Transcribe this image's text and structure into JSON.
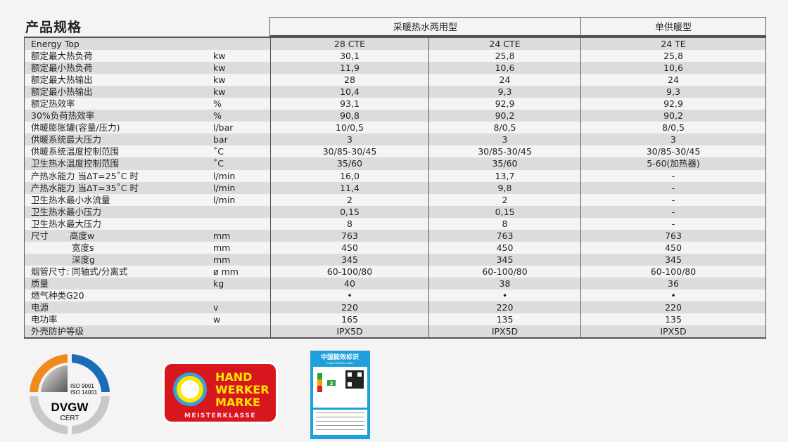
{
  "title": "产品规格",
  "header": {
    "group1": "采暖热水两用型",
    "group2": "单供暖型"
  },
  "rows": [
    {
      "label": "Energy Top",
      "sub": "",
      "unit": "",
      "values": [
        "28 CTE",
        "24 CTE",
        "24 TE"
      ]
    },
    {
      "label": "额定最大热负荷",
      "sub": "",
      "unit": "kw",
      "values": [
        "30,1",
        "25,8",
        "25,8"
      ]
    },
    {
      "label": "额定最小热负荷",
      "sub": "",
      "unit": "kw",
      "values": [
        "11,9",
        "10,6",
        "10,6"
      ]
    },
    {
      "label": "额定最大热输出",
      "sub": "",
      "unit": "kw",
      "values": [
        "28",
        "24",
        "24"
      ]
    },
    {
      "label": "额定最小热输出",
      "sub": "",
      "unit": "kw",
      "values": [
        "10,4",
        "9,3",
        "9,3"
      ]
    },
    {
      "label": "额定热效率",
      "sub": "",
      "unit": "%",
      "values": [
        "93,1",
        "92,9",
        "92,9"
      ]
    },
    {
      "label": "30%负荷热效率",
      "sub": "",
      "unit": "%",
      "values": [
        "90,8",
        "90,2",
        "90,2"
      ]
    },
    {
      "label": "供暖膨胀罐(容量/压力)",
      "sub": "",
      "unit": "l/bar",
      "values": [
        "10/0,5",
        "8/0,5",
        "8/0,5"
      ]
    },
    {
      "label": "供暖系统最大压力",
      "sub": "",
      "unit": "bar",
      "values": [
        "3",
        "3",
        "3"
      ]
    },
    {
      "label": "供暖系统温度控制范围",
      "sub": "",
      "unit": "˚C",
      "values": [
        "30/85-30/45",
        "30/85-30/45",
        "30/85-30/45"
      ]
    },
    {
      "label": "卫生热水温度控制范围",
      "sub": "",
      "unit": "˚C",
      "values": [
        "35/60",
        "35/60",
        "5-60(加热器)"
      ]
    },
    {
      "label": "产热水能力 当ΔT=25˚C 时",
      "sub": "",
      "unit": "l/min",
      "values": [
        "16,0",
        "13,7",
        "-"
      ]
    },
    {
      "label": "产热水能力 当ΔT=35˚C 时",
      "sub": "",
      "unit": "l/min",
      "values": [
        "11,4",
        "9,8",
        "-"
      ]
    },
    {
      "label": "卫生热水最小水流量",
      "sub": "",
      "unit": "l/min",
      "values": [
        "2",
        "2",
        "-"
      ]
    },
    {
      "label": "卫生热水最小压力",
      "sub": "",
      "unit": "",
      "values": [
        "0,15",
        "0,15",
        "-"
      ]
    },
    {
      "label": "卫生热水最大压力",
      "sub": "",
      "unit": "",
      "values": [
        "8",
        "8",
        "-"
      ]
    },
    {
      "label": "尺寸",
      "sub": "高度w",
      "unit": "mm",
      "values": [
        "763",
        "763",
        "763"
      ]
    },
    {
      "label": "",
      "sub": "宽度s",
      "unit": "mm",
      "values": [
        "450",
        "450",
        "450"
      ]
    },
    {
      "label": "",
      "sub": "深度g",
      "unit": "mm",
      "values": [
        "345",
        "345",
        "345"
      ]
    },
    {
      "label": "烟管尺寸: 同轴式/分离式",
      "sub": "",
      "unit": "ø mm",
      "values": [
        "60-100/80",
        "60-100/80",
        "60-100/80"
      ]
    },
    {
      "label": "质量",
      "sub": "",
      "unit": "kg",
      "values": [
        "40",
        "38",
        "36"
      ]
    },
    {
      "label": "燃气种类G20",
      "sub": "",
      "unit": "",
      "values": [
        "•",
        "•",
        "•"
      ]
    },
    {
      "label": "电源",
      "sub": "",
      "unit": "v",
      "values": [
        "220",
        "220",
        "220"
      ]
    },
    {
      "label": "电功率",
      "sub": "",
      "unit": "w",
      "values": [
        "165",
        "135",
        "135"
      ]
    },
    {
      "label": "外壳防护等级",
      "sub": "",
      "unit": "",
      "values": [
        "IPX5D",
        "IPX5D",
        "IPX5D"
      ]
    }
  ],
  "logos": {
    "dvgw": {
      "line1": "ISO 9001",
      "line2": "ISO 14001",
      "name": "DVGW",
      "sub": "CERT",
      "colors": {
        "orange": "#f08a1c",
        "blue": "#1a6db5",
        "gray": "#c8c8c8"
      }
    },
    "handwerker": {
      "l1": "HAND",
      "l2": "WERKER",
      "l3": "MARKE",
      "l4": "MEISTERKLASSE",
      "colors": {
        "red": "#d8161e",
        "yellow": "#ffe600"
      }
    },
    "energy_label": {
      "title": "中国能效标识",
      "subtitle": "CHINA ENERGY LABEL",
      "grade": "2",
      "color": "#1ea0db"
    }
  }
}
